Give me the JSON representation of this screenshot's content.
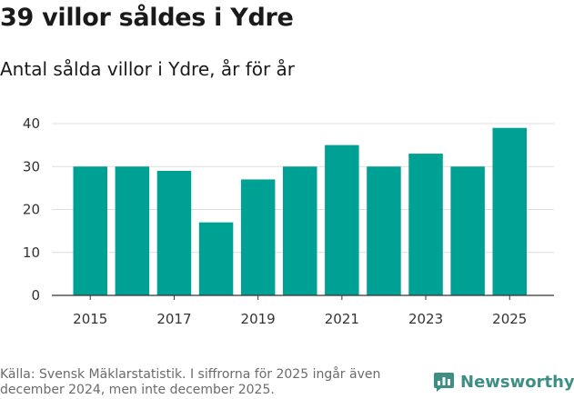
{
  "title": "39 villor såldes i Ydre",
  "subtitle": "Antal sålda villor i Ydre, år för år",
  "footer": "Källa: Svensk Mäklarstatistik. I siffrorna för 2025 ingår även december 2024, men inte december 2025.",
  "brand": {
    "name": "Newsworthy",
    "icon": "bar-chart-icon",
    "color": "#3d8f84"
  },
  "colors": {
    "bar": "#00a195",
    "grid": "#dddddd",
    "axis": "#333333"
  },
  "chart_data": {
    "type": "bar",
    "title": "39 villor såldes i Ydre",
    "subtitle": "Antal sålda villor i Ydre, år för år",
    "xlabel": "",
    "ylabel": "",
    "categories": [
      "2015",
      "2016",
      "2017",
      "2018",
      "2019",
      "2020",
      "2021",
      "2022",
      "2023",
      "2024",
      "2025"
    ],
    "values": [
      30,
      30,
      29,
      17,
      27,
      30,
      35,
      30,
      33,
      30,
      39
    ],
    "ylim": [
      0,
      40
    ],
    "yticks": [
      0,
      10,
      20,
      30,
      40
    ],
    "xtick_labels": [
      "2015",
      "2017",
      "2019",
      "2021",
      "2023",
      "2025"
    ],
    "grid": true,
    "legend": "none"
  }
}
